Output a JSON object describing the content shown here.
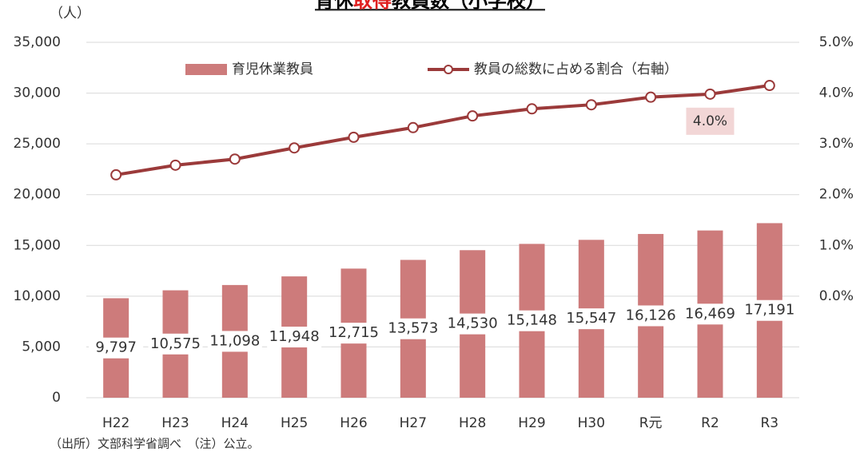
{
  "chart_data": {
    "type": "bar-line",
    "title": [
      "育休",
      "取得",
      "教員数（小学校）"
    ],
    "title_colors": [
      "#000000",
      "#e02020",
      "#000000"
    ],
    "y_unit": "（人）",
    "note": "（出所）文部科学省調べ　（注）公立。",
    "categories": [
      "H22",
      "H23",
      "H24",
      "H25",
      "H26",
      "H27",
      "H28",
      "H29",
      "H30",
      "R元",
      "R2",
      "R3"
    ],
    "series": [
      {
        "name": "育児休業教員",
        "type": "bar",
        "color": "#cd7b7b",
        "values": [
          9797,
          10575,
          11098,
          11948,
          12715,
          13573,
          14530,
          15148,
          15547,
          16126,
          16469,
          17191
        ],
        "value_labels": [
          "9,797",
          "10,575",
          "11,098",
          "11,948",
          "12,715",
          "13,573",
          "14,530",
          "15,148",
          "15,547",
          "16,126",
          "16,469",
          "17,191"
        ]
      },
      {
        "name": "教員の総数に占める割合（右軸）",
        "type": "line",
        "axis": "y2",
        "color": "#9b3a3a",
        "values": [
          2.39,
          2.58,
          2.7,
          2.92,
          3.13,
          3.32,
          3.55,
          3.69,
          3.77,
          3.92,
          3.98,
          4.15
        ],
        "value_labels": [
          null,
          null,
          null,
          null,
          null,
          null,
          null,
          null,
          null,
          null,
          "4.0%",
          null
        ]
      }
    ],
    "ylim": [
      0,
      35000
    ],
    "yticks": [
      {
        "value": 0,
        "label": "0"
      },
      {
        "value": 5000,
        "label": "5,000"
      },
      {
        "value": 10000,
        "label": "10,000"
      },
      {
        "value": 15000,
        "label": "15,000"
      },
      {
        "value": 20000,
        "label": "20,000"
      },
      {
        "value": 25000,
        "label": "25,000"
      },
      {
        "value": 30000,
        "label": "30,000"
      },
      {
        "value": 35000,
        "label": "35,000"
      }
    ],
    "y2lim": [
      -2,
      5
    ],
    "y2ticks": [
      {
        "value": 0,
        "label": "0.0%"
      },
      {
        "value": 1,
        "label": "1.0%"
      },
      {
        "value": 2,
        "label": "2.0%"
      },
      {
        "value": 3,
        "label": "3.0%"
      },
      {
        "value": 4,
        "label": "4.0%"
      },
      {
        "value": 5,
        "label": "5.0%"
      }
    ],
    "grid": true
  }
}
